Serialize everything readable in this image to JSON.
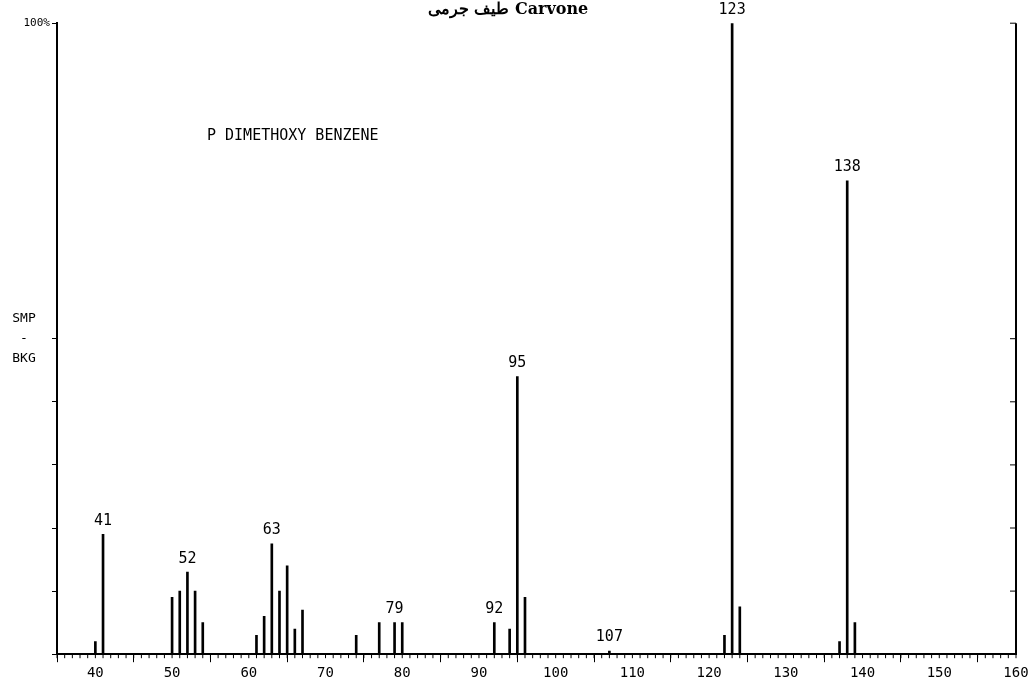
{
  "chart_data": {
    "type": "bar",
    "title": "طیف جرمی Carvone",
    "ylabel": "SMP\n-\nBKG",
    "x": [
      40,
      41,
      50,
      51,
      52,
      53,
      54,
      61,
      62,
      63,
      64,
      65,
      66,
      67,
      74,
      77,
      79,
      80,
      92,
      94,
      95,
      96,
      107,
      122,
      123,
      124,
      137,
      138,
      139
    ],
    "values": [
      2,
      19,
      9,
      10,
      13,
      10,
      5,
      3,
      6,
      17.5,
      10,
      14,
      4,
      7,
      3,
      5,
      5,
      5,
      5,
      4,
      44,
      9,
      0.5,
      3,
      100,
      7.5,
      2,
      75,
      5
    ],
    "color": "#000000",
    "xlim": [
      35,
      160
    ],
    "xticks": [
      40,
      50,
      60,
      70,
      80,
      90,
      100,
      110,
      120,
      130,
      140,
      150,
      160
    ],
    "ylim": [
      0,
      100
    ],
    "yticks": [
      {
        "value": 0,
        "label": null
      },
      {
        "value": 10,
        "label": null
      },
      {
        "value": 20,
        "label": null
      },
      {
        "value": 30,
        "label": null
      },
      {
        "value": 40,
        "label": null
      },
      {
        "value": 50,
        "label": null
      },
      {
        "value": 100,
        "label": "100%"
      }
    ],
    "grid": false,
    "legend": false,
    "annotations": [
      "P DIMETHOXY BENZENE",
      {
        "text": "41",
        "x": 41,
        "y": 19
      },
      {
        "text": "52",
        "x": 52,
        "y": 13
      },
      {
        "text": "63",
        "x": 63,
        "y": 17.5
      },
      {
        "text": "79",
        "x": 79,
        "y": 5
      },
      {
        "text": "92",
        "x": 92,
        "y": 5
      },
      {
        "text": "95",
        "x": 95,
        "y": 44
      },
      {
        "text": "107",
        "x": 107,
        "y": 0.5
      },
      {
        "text": "123",
        "x": 123,
        "y": 100
      },
      {
        "text": "138",
        "x": 138,
        "y": 75
      }
    ]
  }
}
